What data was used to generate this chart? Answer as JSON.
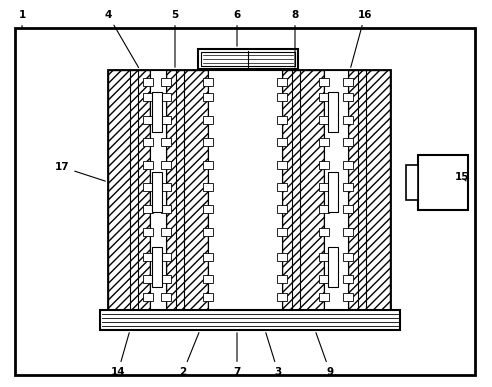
{
  "bg_color": "#ffffff",
  "line_color": "#000000",
  "figsize": [
    4.92,
    3.87
  ],
  "dpi": 100
}
